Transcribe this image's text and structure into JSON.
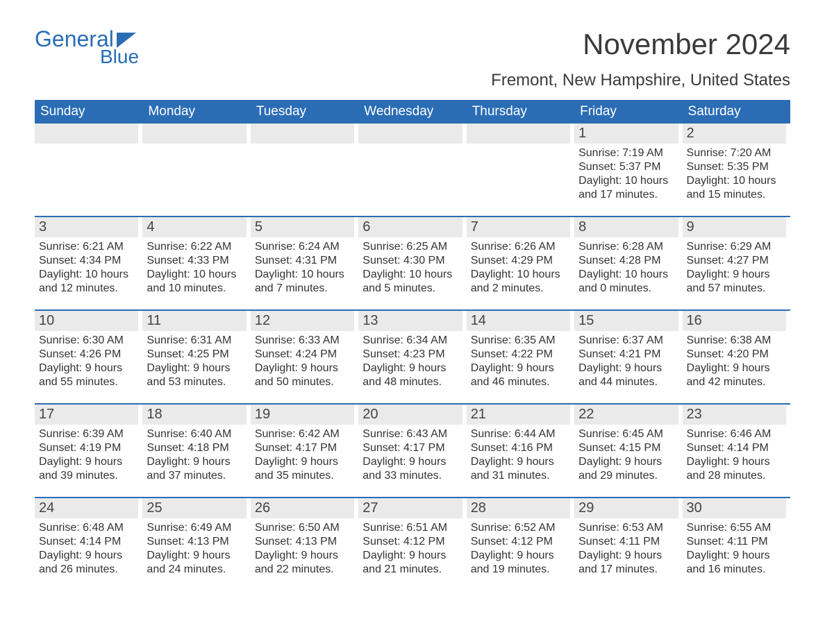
{
  "logo": {
    "word1": "General",
    "word2": "Blue",
    "brand_color": "#2a6db5"
  },
  "title": "November 2024",
  "subtitle": "Fremont, New Hampshire, United States",
  "colors": {
    "header_bg": "#2a6db5",
    "header_text": "#ffffff",
    "day_bar_bg": "#eaeaea",
    "text": "#333333",
    "page_bg": "#ffffff",
    "week_divider": "#2a6db5"
  },
  "typography": {
    "title_fontsize": 42,
    "subtitle_fontsize": 24,
    "weekday_fontsize": 19,
    "daynum_fontsize": 20,
    "body_fontsize": 16,
    "font_family": "Arial"
  },
  "weekdays": [
    "Sunday",
    "Monday",
    "Tuesday",
    "Wednesday",
    "Thursday",
    "Friday",
    "Saturday"
  ],
  "weeks": [
    [
      null,
      null,
      null,
      null,
      null,
      {
        "day": "1",
        "sunrise": "Sunrise: 7:19 AM",
        "sunset": "Sunset: 5:37 PM",
        "daylight": "Daylight: 10 hours and 17 minutes."
      },
      {
        "day": "2",
        "sunrise": "Sunrise: 7:20 AM",
        "sunset": "Sunset: 5:35 PM",
        "daylight": "Daylight: 10 hours and 15 minutes."
      }
    ],
    [
      {
        "day": "3",
        "sunrise": "Sunrise: 6:21 AM",
        "sunset": "Sunset: 4:34 PM",
        "daylight": "Daylight: 10 hours and 12 minutes."
      },
      {
        "day": "4",
        "sunrise": "Sunrise: 6:22 AM",
        "sunset": "Sunset: 4:33 PM",
        "daylight": "Daylight: 10 hours and 10 minutes."
      },
      {
        "day": "5",
        "sunrise": "Sunrise: 6:24 AM",
        "sunset": "Sunset: 4:31 PM",
        "daylight": "Daylight: 10 hours and 7 minutes."
      },
      {
        "day": "6",
        "sunrise": "Sunrise: 6:25 AM",
        "sunset": "Sunset: 4:30 PM",
        "daylight": "Daylight: 10 hours and 5 minutes."
      },
      {
        "day": "7",
        "sunrise": "Sunrise: 6:26 AM",
        "sunset": "Sunset: 4:29 PM",
        "daylight": "Daylight: 10 hours and 2 minutes."
      },
      {
        "day": "8",
        "sunrise": "Sunrise: 6:28 AM",
        "sunset": "Sunset: 4:28 PM",
        "daylight": "Daylight: 10 hours and 0 minutes."
      },
      {
        "day": "9",
        "sunrise": "Sunrise: 6:29 AM",
        "sunset": "Sunset: 4:27 PM",
        "daylight": "Daylight: 9 hours and 57 minutes."
      }
    ],
    [
      {
        "day": "10",
        "sunrise": "Sunrise: 6:30 AM",
        "sunset": "Sunset: 4:26 PM",
        "daylight": "Daylight: 9 hours and 55 minutes."
      },
      {
        "day": "11",
        "sunrise": "Sunrise: 6:31 AM",
        "sunset": "Sunset: 4:25 PM",
        "daylight": "Daylight: 9 hours and 53 minutes."
      },
      {
        "day": "12",
        "sunrise": "Sunrise: 6:33 AM",
        "sunset": "Sunset: 4:24 PM",
        "daylight": "Daylight: 9 hours and 50 minutes."
      },
      {
        "day": "13",
        "sunrise": "Sunrise: 6:34 AM",
        "sunset": "Sunset: 4:23 PM",
        "daylight": "Daylight: 9 hours and 48 minutes."
      },
      {
        "day": "14",
        "sunrise": "Sunrise: 6:35 AM",
        "sunset": "Sunset: 4:22 PM",
        "daylight": "Daylight: 9 hours and 46 minutes."
      },
      {
        "day": "15",
        "sunrise": "Sunrise: 6:37 AM",
        "sunset": "Sunset: 4:21 PM",
        "daylight": "Daylight: 9 hours and 44 minutes."
      },
      {
        "day": "16",
        "sunrise": "Sunrise: 6:38 AM",
        "sunset": "Sunset: 4:20 PM",
        "daylight": "Daylight: 9 hours and 42 minutes."
      }
    ],
    [
      {
        "day": "17",
        "sunrise": "Sunrise: 6:39 AM",
        "sunset": "Sunset: 4:19 PM",
        "daylight": "Daylight: 9 hours and 39 minutes."
      },
      {
        "day": "18",
        "sunrise": "Sunrise: 6:40 AM",
        "sunset": "Sunset: 4:18 PM",
        "daylight": "Daylight: 9 hours and 37 minutes."
      },
      {
        "day": "19",
        "sunrise": "Sunrise: 6:42 AM",
        "sunset": "Sunset: 4:17 PM",
        "daylight": "Daylight: 9 hours and 35 minutes."
      },
      {
        "day": "20",
        "sunrise": "Sunrise: 6:43 AM",
        "sunset": "Sunset: 4:17 PM",
        "daylight": "Daylight: 9 hours and 33 minutes."
      },
      {
        "day": "21",
        "sunrise": "Sunrise: 6:44 AM",
        "sunset": "Sunset: 4:16 PM",
        "daylight": "Daylight: 9 hours and 31 minutes."
      },
      {
        "day": "22",
        "sunrise": "Sunrise: 6:45 AM",
        "sunset": "Sunset: 4:15 PM",
        "daylight": "Daylight: 9 hours and 29 minutes."
      },
      {
        "day": "23",
        "sunrise": "Sunrise: 6:46 AM",
        "sunset": "Sunset: 4:14 PM",
        "daylight": "Daylight: 9 hours and 28 minutes."
      }
    ],
    [
      {
        "day": "24",
        "sunrise": "Sunrise: 6:48 AM",
        "sunset": "Sunset: 4:14 PM",
        "daylight": "Daylight: 9 hours and 26 minutes."
      },
      {
        "day": "25",
        "sunrise": "Sunrise: 6:49 AM",
        "sunset": "Sunset: 4:13 PM",
        "daylight": "Daylight: 9 hours and 24 minutes."
      },
      {
        "day": "26",
        "sunrise": "Sunrise: 6:50 AM",
        "sunset": "Sunset: 4:13 PM",
        "daylight": "Daylight: 9 hours and 22 minutes."
      },
      {
        "day": "27",
        "sunrise": "Sunrise: 6:51 AM",
        "sunset": "Sunset: 4:12 PM",
        "daylight": "Daylight: 9 hours and 21 minutes."
      },
      {
        "day": "28",
        "sunrise": "Sunrise: 6:52 AM",
        "sunset": "Sunset: 4:12 PM",
        "daylight": "Daylight: 9 hours and 19 minutes."
      },
      {
        "day": "29",
        "sunrise": "Sunrise: 6:53 AM",
        "sunset": "Sunset: 4:11 PM",
        "daylight": "Daylight: 9 hours and 17 minutes."
      },
      {
        "day": "30",
        "sunrise": "Sunrise: 6:55 AM",
        "sunset": "Sunset: 4:11 PM",
        "daylight": "Daylight: 9 hours and 16 minutes."
      }
    ]
  ]
}
